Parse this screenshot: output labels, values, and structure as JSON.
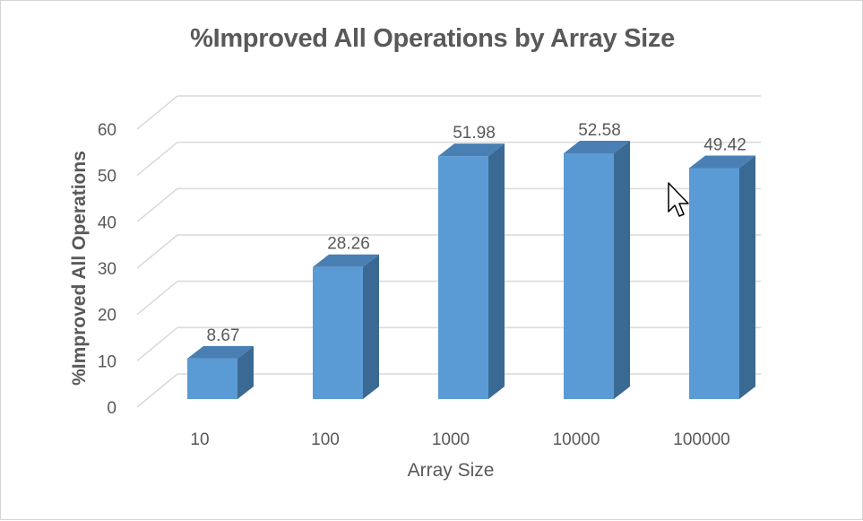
{
  "chart_data": {
    "type": "bar",
    "title": "%Improved All Operations by Array Size",
    "xlabel": "Array Size",
    "ylabel": "%Improved All Operations",
    "categories": [
      "10",
      "100",
      "1000",
      "10000",
      "100000"
    ],
    "values": [
      8.67,
      28.26,
      51.98,
      52.58,
      49.42
    ],
    "data_labels": [
      "8.67",
      "28.26",
      "51.98",
      "52.58",
      "49.42"
    ],
    "yticks": [
      0,
      10,
      20,
      30,
      40,
      50,
      60
    ],
    "ylim": [
      0,
      60
    ],
    "grid": true,
    "style": "3d-column",
    "colors": {
      "bar_front": "#5B9BD5",
      "bar_side": "#3A6A94",
      "bar_top": "#4A7FB3",
      "grid": "#D9D9D9",
      "text": "#595959"
    }
  },
  "cursor_icon": "arrow-cursor-icon"
}
